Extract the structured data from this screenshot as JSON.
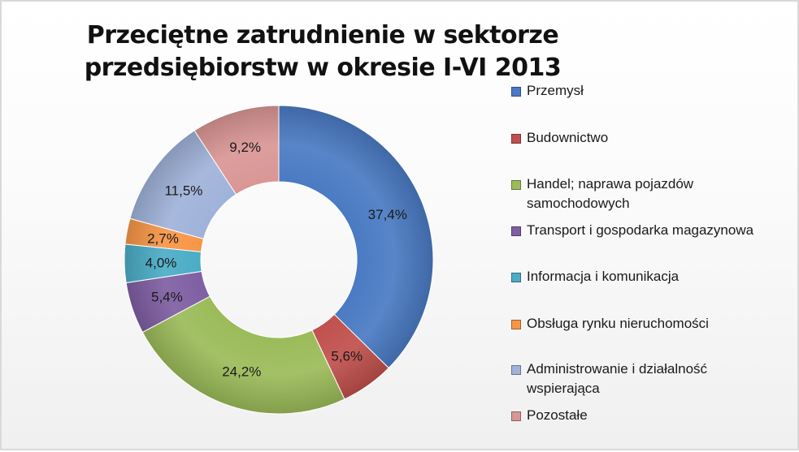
{
  "chart_data": {
    "type": "pie",
    "subtype": "donut",
    "title": "Przeciętne zatrudnienie w sektorze przedsiębiorstw w okresie I-VI 2013",
    "legend_position": "right",
    "slices": [
      {
        "label": "Przemysł",
        "value": 37.4,
        "display": "37,4%",
        "color": "#4a7ac3"
      },
      {
        "label": "Budownictwo",
        "value": 5.6,
        "display": "5,6%",
        "color": "#c0504d"
      },
      {
        "label": "Handel; naprawa pojazdów samochodowych",
        "value": 24.2,
        "display": "24,2%",
        "color": "#9bbb59"
      },
      {
        "label": "Transport i gospodarka magazynowa",
        "value": 5.4,
        "display": "5,4%",
        "color": "#7f5ea3"
      },
      {
        "label": "Informacja i komunikacja",
        "value": 4.0,
        "display": "4,0%",
        "color": "#4bacc6"
      },
      {
        "label": "Obsługa rynku nieruchomości",
        "value": 2.7,
        "display": "2,7%",
        "color": "#f79646"
      },
      {
        "label": "Administrowanie i działalność wspierająca",
        "value": 11.5,
        "display": "11,5%",
        "color": "#9fb2d9"
      },
      {
        "label": "Pozostałe",
        "value": 9.2,
        "display": "9,2%",
        "color": "#d99694"
      }
    ]
  }
}
